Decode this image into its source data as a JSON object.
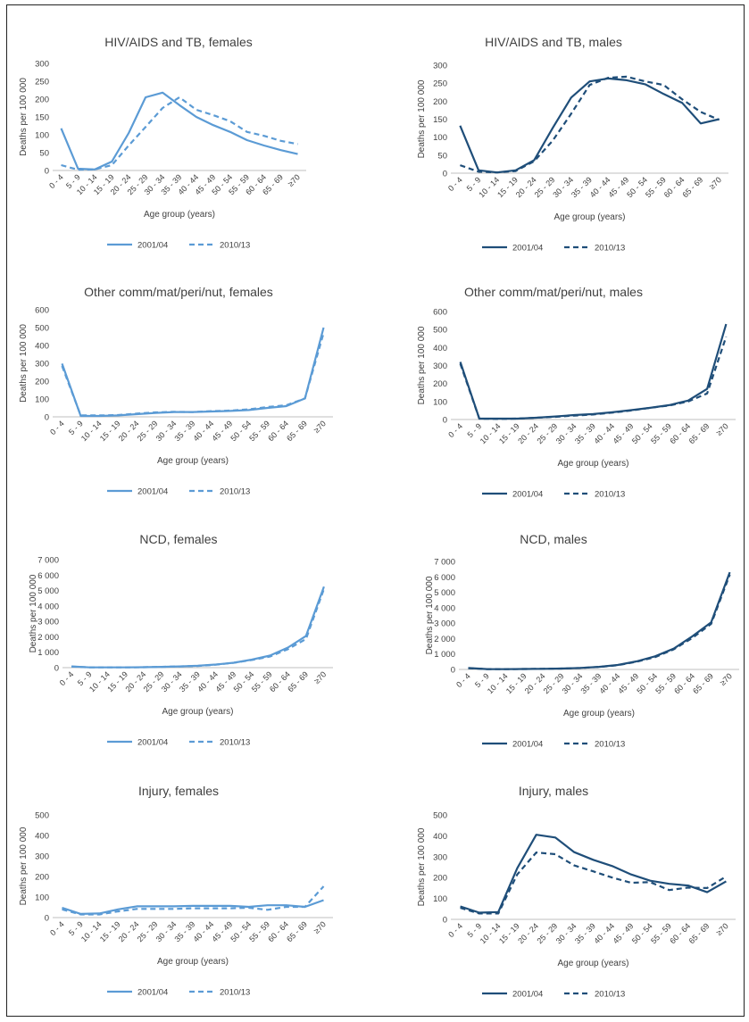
{
  "colors": {
    "females": "#5b9bd5",
    "males": "#1f4e79",
    "axis": "#bfbfbf",
    "text": "#404040"
  },
  "legend_labels": [
    "2001/04",
    "2010/13"
  ],
  "chart_data": [
    {
      "type": "line",
      "title": "HIV/AIDS and TB, females",
      "xlabel": "Age group (years)",
      "ylabel": "Deaths per 100 000",
      "categories": [
        "0 - 4",
        "5 - 9",
        "10 - 14",
        "15 - 19",
        "20 - 24",
        "25 - 29",
        "30 - 34",
        "35 - 39",
        "40 - 44",
        "45 - 49",
        "50 - 54",
        "55 - 59",
        "60 - 64",
        "65 - 69",
        "≥70"
      ],
      "ylim": [
        0,
        300
      ],
      "yticks": [
        0,
        50,
        100,
        150,
        200,
        250,
        300
      ],
      "ytick_labels": [
        "0",
        "50",
        "100",
        "150",
        "200",
        "250",
        "300"
      ],
      "color": "#5b9bd5",
      "legend": "bottom",
      "series": [
        {
          "name": "2001/04",
          "style": "solid",
          "values": [
            118,
            5,
            3,
            25,
            105,
            205,
            218,
            183,
            150,
            127,
            108,
            85,
            70,
            57,
            46
          ]
        },
        {
          "name": "2010/13",
          "style": "dashed",
          "values": [
            15,
            2,
            3,
            15,
            70,
            122,
            175,
            205,
            170,
            155,
            138,
            108,
            97,
            83,
            74
          ]
        }
      ]
    },
    {
      "type": "line",
      "title": "HIV/AIDS and TB, males",
      "xlabel": "Age group (years)",
      "ylabel": "Deaths per 100 000",
      "categories": [
        "0 - 4",
        "5 - 9",
        "10 - 14",
        "15 - 19",
        "20 - 24",
        "25 - 29",
        "30 - 34",
        "35 - 39",
        "40 - 44",
        "45 - 49",
        "50 - 54",
        "55 - 59",
        "60 - 64",
        "65 - 69",
        "≥70"
      ],
      "ylim": [
        0,
        300
      ],
      "yticks": [
        0,
        50,
        100,
        150,
        200,
        250,
        300
      ],
      "ytick_labels": [
        "0",
        "50",
        "100",
        "150",
        "200",
        "250",
        "300"
      ],
      "color": "#1f4e79",
      "legend": "bottom",
      "series": [
        {
          "name": "2001/04",
          "style": "solid",
          "values": [
            132,
            8,
            2,
            8,
            36,
            125,
            210,
            255,
            263,
            258,
            247,
            220,
            195,
            138,
            150
          ]
        },
        {
          "name": "2010/13",
          "style": "dashed",
          "values": [
            22,
            4,
            2,
            6,
            33,
            90,
            165,
            245,
            265,
            268,
            255,
            245,
            205,
            170,
            148
          ]
        }
      ]
    },
    {
      "type": "line",
      "title": "Other comm/mat/peri/nut, females",
      "xlabel": "Age group (years)",
      "ylabel": "Deaths per 100 000",
      "categories": [
        "0 - 4",
        "5 - 9",
        "10 - 14",
        "15 - 19",
        "20 - 24",
        "25 - 29",
        "30 - 34",
        "35 - 39",
        "40 - 44",
        "45 - 49",
        "50 - 54",
        "55 - 59",
        "60 - 64",
        "65 - 69",
        "≥70"
      ],
      "ylim": [
        0,
        600
      ],
      "yticks": [
        0,
        100,
        200,
        300,
        400,
        500,
        600
      ],
      "ytick_labels": [
        "0",
        "100",
        "200",
        "300",
        "400",
        "500",
        "600"
      ],
      "color": "#5b9bd5",
      "legend": "bottom",
      "series": [
        {
          "name": "2001/04",
          "style": "solid",
          "values": [
            298,
            5,
            5,
            8,
            15,
            22,
            27,
            27,
            30,
            33,
            38,
            50,
            60,
            103,
            500
          ]
        },
        {
          "name": "2010/13",
          "style": "dashed",
          "values": [
            285,
            8,
            8,
            10,
            18,
            25,
            28,
            27,
            32,
            35,
            42,
            55,
            65,
            103,
            470
          ]
        }
      ]
    },
    {
      "type": "line",
      "title": "Other comm/mat/peri/nut, males",
      "xlabel": "Age group (years)",
      "ylabel": "Deaths per 100 000",
      "categories": [
        "0 - 4",
        "5 - 9",
        "10 - 14",
        "15 - 19",
        "20 - 24",
        "25 - 29",
        "30 - 34",
        "35 - 39",
        "40 - 44",
        "45 - 49",
        "50 - 54",
        "55 - 59",
        "60 - 64",
        "65 - 69",
        "≥70"
      ],
      "ylim": [
        0,
        600
      ],
      "yticks": [
        0,
        100,
        200,
        300,
        400,
        500,
        600
      ],
      "ytick_labels": [
        "0",
        "100",
        "200",
        "300",
        "400",
        "500",
        "600"
      ],
      "color": "#1f4e79",
      "legend": "bottom",
      "series": [
        {
          "name": "2001/04",
          "style": "solid",
          "values": [
            320,
            5,
            5,
            5,
            10,
            17,
            25,
            30,
            40,
            52,
            65,
            80,
            105,
            170,
            530
          ]
        },
        {
          "name": "2010/13",
          "style": "dashed",
          "values": [
            310,
            5,
            3,
            5,
            10,
            15,
            22,
            28,
            38,
            50,
            65,
            78,
            100,
            145,
            460
          ]
        }
      ]
    },
    {
      "type": "line",
      "title": "NCD, females",
      "xlabel": "Age group (years)",
      "ylabel": "Deaths per 100 000",
      "categories": [
        "0 - 4",
        "5 - 9",
        "10 - 14",
        "15 - 19",
        "20 - 24",
        "25 - 29",
        "30 - 34",
        "35 - 39",
        "40 - 44",
        "45 - 49",
        "50 - 54",
        "55 - 59",
        "60 - 64",
        "65 - 69",
        "≥70"
      ],
      "ylim": [
        0,
        7000
      ],
      "yticks": [
        0,
        1000,
        2000,
        3000,
        4000,
        5000,
        6000,
        7000
      ],
      "ytick_labels": [
        "0",
        "1 000",
        "2 000",
        "3 000",
        "4 000",
        "5 000",
        "6 000",
        "7 000"
      ],
      "color": "#5b9bd5",
      "legend": "bottom",
      "series": [
        {
          "name": "2001/04",
          "style": "solid",
          "values": [
            80,
            20,
            15,
            20,
            30,
            50,
            80,
            120,
            200,
            320,
            520,
            780,
            1300,
            2050,
            5250
          ]
        },
        {
          "name": "2010/13",
          "style": "dashed",
          "values": [
            70,
            20,
            15,
            20,
            30,
            50,
            80,
            110,
            190,
            320,
            500,
            720,
            1200,
            1850,
            5100
          ]
        }
      ]
    },
    {
      "type": "line",
      "title": "NCD, males",
      "xlabel": "Age group (years)",
      "ylabel": "Deaths per 100 000",
      "categories": [
        "0 - 4",
        "5 - 9",
        "10 - 14",
        "15 - 19",
        "20 - 24",
        "25 - 29",
        "30 - 34",
        "35 - 39",
        "40 - 44",
        "45 - 49",
        "50 - 54",
        "55 - 59",
        "60 - 64",
        "65 - 69",
        "≥70"
      ],
      "ylim": [
        0,
        7000
      ],
      "yticks": [
        0,
        1000,
        2000,
        3000,
        4000,
        5000,
        6000,
        7000
      ],
      "ytick_labels": [
        "0",
        "1 000",
        "2 000",
        "3 000",
        "4 000",
        "5 000",
        "6 000",
        "7 000"
      ],
      "color": "#1f4e79",
      "legend": "bottom",
      "series": [
        {
          "name": "2001/04",
          "style": "solid",
          "values": [
            90,
            25,
            20,
            30,
            40,
            60,
            100,
            170,
            290,
            520,
            850,
            1350,
            2150,
            3050,
            6300
          ]
        },
        {
          "name": "2010/13",
          "style": "dashed",
          "values": [
            80,
            25,
            20,
            28,
            40,
            60,
            95,
            160,
            270,
            500,
            800,
            1300,
            2050,
            2950,
            6150
          ]
        }
      ]
    },
    {
      "type": "line",
      "title": "Injury, females",
      "xlabel": "Age group (years)",
      "ylabel": "Deaths per 100 000",
      "categories": [
        "0 - 4",
        "5 - 9",
        "10 - 14",
        "15 - 19",
        "20 - 24",
        "25 - 29",
        "30 - 34",
        "35 - 39",
        "40 - 44",
        "45 - 49",
        "50 - 54",
        "55 - 59",
        "60 - 64",
        "65 - 69",
        "≥70"
      ],
      "ylim": [
        0,
        500
      ],
      "yticks": [
        0,
        100,
        200,
        300,
        400,
        500
      ],
      "ytick_labels": [
        "0",
        "100",
        "200",
        "300",
        "400",
        "500"
      ],
      "color": "#5b9bd5",
      "legend": "bottom",
      "series": [
        {
          "name": "2001/04",
          "style": "solid",
          "values": [
            48,
            18,
            20,
            40,
            55,
            55,
            55,
            57,
            57,
            57,
            52,
            60,
            60,
            52,
            85
          ]
        },
        {
          "name": "2010/13",
          "style": "dashed",
          "values": [
            40,
            15,
            15,
            30,
            42,
            42,
            42,
            45,
            45,
            45,
            48,
            38,
            52,
            52,
            152
          ]
        }
      ]
    },
    {
      "type": "line",
      "title": "Injury, males",
      "xlabel": "Age group (years)",
      "ylabel": "Deaths per 100 000",
      "categories": [
        "0 - 4",
        "5 - 9",
        "10 - 14",
        "15 - 19",
        "20 - 24",
        "25 - 29",
        "30 - 34",
        "35 - 39",
        "40 - 44",
        "45 - 49",
        "50 - 54",
        "55 - 59",
        "60 - 64",
        "65 - 69",
        "≥70"
      ],
      "ylim": [
        0,
        500
      ],
      "yticks": [
        0,
        100,
        200,
        300,
        400,
        500
      ],
      "ytick_labels": [
        "0",
        "100",
        "200",
        "300",
        "400",
        "500"
      ],
      "color": "#1f4e79",
      "legend": "bottom",
      "series": [
        {
          "name": "2001/04",
          "style": "solid",
          "values": [
            62,
            32,
            35,
            245,
            405,
            392,
            322,
            285,
            255,
            215,
            185,
            170,
            162,
            130,
            182
          ]
        },
        {
          "name": "2010/13",
          "style": "dashed",
          "values": [
            55,
            28,
            28,
            215,
            320,
            312,
            258,
            230,
            200,
            175,
            178,
            140,
            152,
            150,
            205
          ]
        }
      ]
    }
  ]
}
